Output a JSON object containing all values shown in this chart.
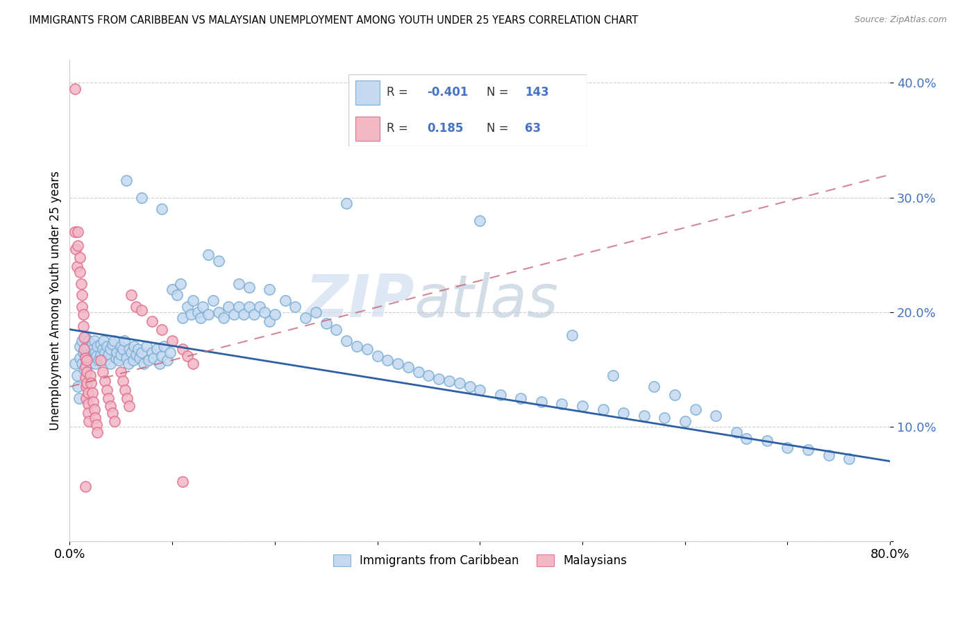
{
  "title": "IMMIGRANTS FROM CARIBBEAN VS MALAYSIAN UNEMPLOYMENT AMONG YOUTH UNDER 25 YEARS CORRELATION CHART",
  "source": "Source: ZipAtlas.com",
  "ylabel": "Unemployment Among Youth under 25 years",
  "legend_label1": "Immigrants from Caribbean",
  "legend_label2": "Malaysians",
  "R1": "-0.401",
  "N1": "143",
  "R2": "0.185",
  "N2": "63",
  "color_blue_fill": "#c5d9f1",
  "color_blue_edge": "#7bafd4",
  "color_pink_fill": "#f2b8c6",
  "color_pink_edge": "#e07090",
  "color_blue_text": "#4472c4",
  "color_blue_line": "#2e5fa3",
  "color_pink_line": "#c9687a",
  "xlim": [
    0.0,
    0.8
  ],
  "ylim": [
    0.0,
    0.42
  ],
  "blue_line_x": [
    0.0,
    0.8
  ],
  "blue_line_y": [
    0.185,
    0.07
  ],
  "pink_line_x": [
    0.0,
    0.8
  ],
  "pink_line_y": [
    0.135,
    0.32
  ],
  "scatter_blue": [
    [
      0.005,
      0.155
    ],
    [
      0.007,
      0.145
    ],
    [
      0.008,
      0.135
    ],
    [
      0.009,
      0.125
    ],
    [
      0.01,
      0.17
    ],
    [
      0.01,
      0.16
    ],
    [
      0.012,
      0.175
    ],
    [
      0.012,
      0.155
    ],
    [
      0.013,
      0.165
    ],
    [
      0.014,
      0.15
    ],
    [
      0.015,
      0.178
    ],
    [
      0.015,
      0.162
    ],
    [
      0.016,
      0.155
    ],
    [
      0.016,
      0.17
    ],
    [
      0.017,
      0.168
    ],
    [
      0.018,
      0.158
    ],
    [
      0.018,
      0.175
    ],
    [
      0.019,
      0.162
    ],
    [
      0.02,
      0.17
    ],
    [
      0.02,
      0.155
    ],
    [
      0.021,
      0.163
    ],
    [
      0.022,
      0.172
    ],
    [
      0.022,
      0.158
    ],
    [
      0.023,
      0.168
    ],
    [
      0.024,
      0.175
    ],
    [
      0.025,
      0.165
    ],
    [
      0.025,
      0.155
    ],
    [
      0.026,
      0.162
    ],
    [
      0.027,
      0.17
    ],
    [
      0.028,
      0.158
    ],
    [
      0.03,
      0.172
    ],
    [
      0.03,
      0.163
    ],
    [
      0.032,
      0.168
    ],
    [
      0.033,
      0.175
    ],
    [
      0.034,
      0.165
    ],
    [
      0.035,
      0.158
    ],
    [
      0.036,
      0.17
    ],
    [
      0.038,
      0.163
    ],
    [
      0.04,
      0.168
    ],
    [
      0.04,
      0.155
    ],
    [
      0.042,
      0.172
    ],
    [
      0.043,
      0.175
    ],
    [
      0.045,
      0.16
    ],
    [
      0.046,
      0.165
    ],
    [
      0.048,
      0.158
    ],
    [
      0.05,
      0.17
    ],
    [
      0.05,
      0.163
    ],
    [
      0.052,
      0.168
    ],
    [
      0.053,
      0.175
    ],
    [
      0.055,
      0.16
    ],
    [
      0.057,
      0.155
    ],
    [
      0.058,
      0.168
    ],
    [
      0.06,
      0.165
    ],
    [
      0.062,
      0.158
    ],
    [
      0.063,
      0.17
    ],
    [
      0.065,
      0.163
    ],
    [
      0.067,
      0.168
    ],
    [
      0.068,
      0.16
    ],
    [
      0.07,
      0.165
    ],
    [
      0.072,
      0.155
    ],
    [
      0.075,
      0.17
    ],
    [
      0.077,
      0.158
    ],
    [
      0.08,
      0.165
    ],
    [
      0.082,
      0.16
    ],
    [
      0.085,
      0.168
    ],
    [
      0.088,
      0.155
    ],
    [
      0.09,
      0.162
    ],
    [
      0.092,
      0.17
    ],
    [
      0.095,
      0.158
    ],
    [
      0.098,
      0.165
    ],
    [
      0.1,
      0.22
    ],
    [
      0.105,
      0.215
    ],
    [
      0.108,
      0.225
    ],
    [
      0.11,
      0.195
    ],
    [
      0.115,
      0.205
    ],
    [
      0.118,
      0.198
    ],
    [
      0.12,
      0.21
    ],
    [
      0.125,
      0.2
    ],
    [
      0.128,
      0.195
    ],
    [
      0.13,
      0.205
    ],
    [
      0.135,
      0.198
    ],
    [
      0.14,
      0.21
    ],
    [
      0.145,
      0.2
    ],
    [
      0.15,
      0.195
    ],
    [
      0.155,
      0.205
    ],
    [
      0.16,
      0.198
    ],
    [
      0.165,
      0.205
    ],
    [
      0.17,
      0.198
    ],
    [
      0.175,
      0.205
    ],
    [
      0.18,
      0.198
    ],
    [
      0.185,
      0.205
    ],
    [
      0.19,
      0.2
    ],
    [
      0.195,
      0.192
    ],
    [
      0.2,
      0.198
    ],
    [
      0.21,
      0.21
    ],
    [
      0.22,
      0.205
    ],
    [
      0.23,
      0.195
    ],
    [
      0.24,
      0.2
    ],
    [
      0.25,
      0.19
    ],
    [
      0.26,
      0.185
    ],
    [
      0.27,
      0.175
    ],
    [
      0.28,
      0.17
    ],
    [
      0.29,
      0.168
    ],
    [
      0.3,
      0.162
    ],
    [
      0.31,
      0.158
    ],
    [
      0.32,
      0.155
    ],
    [
      0.33,
      0.152
    ],
    [
      0.34,
      0.148
    ],
    [
      0.35,
      0.145
    ],
    [
      0.36,
      0.142
    ],
    [
      0.37,
      0.14
    ],
    [
      0.38,
      0.138
    ],
    [
      0.39,
      0.135
    ],
    [
      0.4,
      0.132
    ],
    [
      0.42,
      0.128
    ],
    [
      0.44,
      0.125
    ],
    [
      0.46,
      0.122
    ],
    [
      0.48,
      0.12
    ],
    [
      0.5,
      0.118
    ],
    [
      0.52,
      0.115
    ],
    [
      0.54,
      0.112
    ],
    [
      0.56,
      0.11
    ],
    [
      0.58,
      0.108
    ],
    [
      0.6,
      0.105
    ],
    [
      0.27,
      0.295
    ],
    [
      0.4,
      0.28
    ],
    [
      0.49,
      0.18
    ],
    [
      0.53,
      0.145
    ],
    [
      0.57,
      0.135
    ],
    [
      0.59,
      0.128
    ],
    [
      0.61,
      0.115
    ],
    [
      0.63,
      0.11
    ],
    [
      0.65,
      0.095
    ],
    [
      0.66,
      0.09
    ],
    [
      0.68,
      0.088
    ],
    [
      0.7,
      0.082
    ],
    [
      0.72,
      0.08
    ],
    [
      0.74,
      0.075
    ],
    [
      0.76,
      0.072
    ],
    [
      0.055,
      0.315
    ],
    [
      0.07,
      0.3
    ],
    [
      0.09,
      0.29
    ],
    [
      0.135,
      0.25
    ],
    [
      0.145,
      0.245
    ],
    [
      0.165,
      0.225
    ],
    [
      0.175,
      0.222
    ],
    [
      0.195,
      0.22
    ]
  ],
  "scatter_pink": [
    [
      0.005,
      0.395
    ],
    [
      0.005,
      0.27
    ],
    [
      0.006,
      0.255
    ],
    [
      0.007,
      0.24
    ],
    [
      0.008,
      0.27
    ],
    [
      0.008,
      0.258
    ],
    [
      0.01,
      0.248
    ],
    [
      0.01,
      0.235
    ],
    [
      0.011,
      0.225
    ],
    [
      0.012,
      0.215
    ],
    [
      0.012,
      0.205
    ],
    [
      0.013,
      0.198
    ],
    [
      0.013,
      0.188
    ],
    [
      0.014,
      0.178
    ],
    [
      0.014,
      0.168
    ],
    [
      0.015,
      0.16
    ],
    [
      0.015,
      0.152
    ],
    [
      0.015,
      0.143
    ],
    [
      0.016,
      0.135
    ],
    [
      0.016,
      0.125
    ],
    [
      0.017,
      0.158
    ],
    [
      0.017,
      0.148
    ],
    [
      0.017,
      0.138
    ],
    [
      0.018,
      0.13
    ],
    [
      0.018,
      0.12
    ],
    [
      0.018,
      0.112
    ],
    [
      0.019,
      0.105
    ],
    [
      0.02,
      0.145
    ],
    [
      0.021,
      0.138
    ],
    [
      0.022,
      0.13
    ],
    [
      0.023,
      0.122
    ],
    [
      0.024,
      0.115
    ],
    [
      0.025,
      0.108
    ],
    [
      0.026,
      0.102
    ],
    [
      0.027,
      0.095
    ],
    [
      0.015,
      0.048
    ],
    [
      0.03,
      0.158
    ],
    [
      0.032,
      0.148
    ],
    [
      0.034,
      0.14
    ],
    [
      0.036,
      0.132
    ],
    [
      0.038,
      0.125
    ],
    [
      0.04,
      0.118
    ],
    [
      0.042,
      0.112
    ],
    [
      0.044,
      0.105
    ],
    [
      0.05,
      0.148
    ],
    [
      0.052,
      0.14
    ],
    [
      0.054,
      0.132
    ],
    [
      0.056,
      0.125
    ],
    [
      0.058,
      0.118
    ],
    [
      0.06,
      0.215
    ],
    [
      0.065,
      0.205
    ],
    [
      0.07,
      0.202
    ],
    [
      0.08,
      0.192
    ],
    [
      0.09,
      0.185
    ],
    [
      0.1,
      0.175
    ],
    [
      0.11,
      0.168
    ],
    [
      0.115,
      0.162
    ],
    [
      0.12,
      0.155
    ],
    [
      0.11,
      0.052
    ]
  ]
}
